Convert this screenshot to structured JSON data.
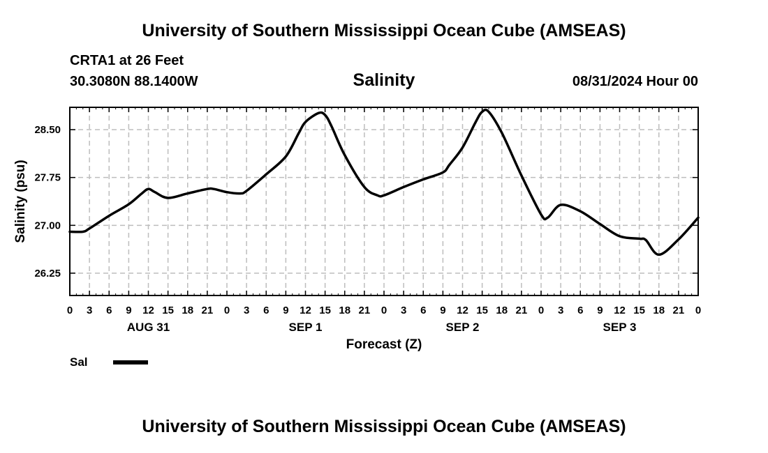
{
  "header": {
    "main_title": "University of Southern Mississippi Ocean Cube (AMSEAS)",
    "station": "CRTA1 at 26 Feet",
    "coordinates": "30.3080N  88.1400W",
    "chart_title": "Salinity",
    "datetime": "08/31/2024 Hour 00"
  },
  "footer": {
    "main_title": "University of Southern Mississippi Ocean Cube (AMSEAS)"
  },
  "legend": {
    "label": "Sal"
  },
  "chart_data": {
    "type": "line",
    "title": "Salinity",
    "xlabel": "Forecast (Z)",
    "ylabel": "Salinity (psu)",
    "xlim": [
      0,
      96
    ],
    "ylim": [
      25.9,
      28.85
    ],
    "grid": true,
    "yticks": [
      26.25,
      27.0,
      27.75,
      28.5
    ],
    "ytick_labels": [
      "26.25",
      "27.00",
      "27.75",
      "28.50"
    ],
    "xticks": [
      0,
      3,
      6,
      9,
      12,
      15,
      18,
      21,
      24,
      27,
      30,
      33,
      36,
      39,
      42,
      45,
      48,
      51,
      54,
      57,
      60,
      63,
      66,
      69,
      72,
      75,
      78,
      81,
      84,
      87,
      90,
      93,
      96
    ],
    "xtick_labels": [
      "0",
      "3",
      "6",
      "9",
      "12",
      "15",
      "18",
      "21",
      "0",
      "3",
      "6",
      "9",
      "12",
      "15",
      "18",
      "21",
      "0",
      "3",
      "6",
      "9",
      "12",
      "15",
      "18",
      "21",
      "0",
      "3",
      "6",
      "9",
      "12",
      "15",
      "18",
      "21",
      "0"
    ],
    "day_labels": [
      {
        "hour": 12,
        "label": "AUG 31"
      },
      {
        "hour": 36,
        "label": "SEP 1"
      },
      {
        "hour": 60,
        "label": "SEP 2"
      },
      {
        "hour": 84,
        "label": "SEP 3"
      }
    ],
    "legend_location": "bottom-left",
    "series": [
      {
        "name": "Sal",
        "color": "#000000",
        "x": [
          0,
          2,
          3,
          6,
          9,
          11,
          12,
          13,
          15,
          18,
          21,
          22,
          24,
          26,
          27,
          30,
          33,
          35,
          36,
          38,
          39,
          40,
          42,
          45,
          47,
          48,
          51,
          54,
          57,
          58,
          60,
          62,
          63,
          64,
          66,
          69,
          72,
          73,
          75,
          78,
          81,
          84,
          87,
          88,
          90,
          93,
          96
        ],
        "y": [
          26.9,
          26.9,
          26.95,
          27.15,
          27.33,
          27.5,
          27.57,
          27.52,
          27.43,
          27.5,
          27.57,
          27.57,
          27.52,
          27.5,
          27.54,
          27.8,
          28.08,
          28.45,
          28.62,
          28.76,
          28.73,
          28.55,
          28.1,
          27.6,
          27.47,
          27.47,
          27.6,
          27.72,
          27.83,
          27.95,
          28.22,
          28.62,
          28.78,
          28.78,
          28.45,
          27.78,
          27.17,
          27.12,
          27.32,
          27.22,
          27.02,
          26.83,
          26.79,
          26.77,
          26.54,
          26.78,
          27.12
        ]
      }
    ]
  }
}
